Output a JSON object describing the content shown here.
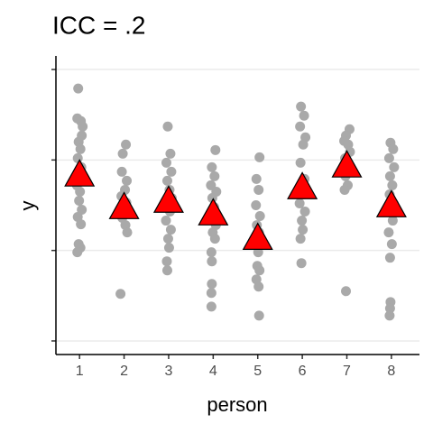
{
  "chart_data": {
    "type": "scatter",
    "title": "ICC = .2",
    "xlabel": "person",
    "ylabel": "y",
    "xlim": [
      0.47,
      8.63
    ],
    "xticks": [
      1,
      2,
      3,
      4,
      5,
      6,
      7,
      8
    ],
    "ylim": [
      -0.15,
      3.15
    ],
    "yticks": [
      0,
      1,
      2,
      3
    ],
    "grid": true,
    "series": [
      {
        "color": "#a9a9a9",
        "marker": "circle",
        "x": [
          0.97,
          0.95,
          1.03,
          1.07,
          1.05,
          0.98,
          1.02,
          0.96,
          1.04,
          1.06,
          0.94,
          1.01,
          0.99,
          1.05,
          0.96,
          1.03,
          0.98,
          1.02,
          0.95,
          2.04,
          1.97,
          1.95,
          2.06,
          2.02,
          1.94,
          2.05,
          1.98,
          1.96,
          2.03,
          2.07,
          1.92,
          2.98,
          3.04,
          2.95,
          3.06,
          2.97,
          3.02,
          3.07,
          2.96,
          3.03,
          2.94,
          3.05,
          2.99,
          3.01,
          2.96,
          2.97,
          4.05,
          3.97,
          4.03,
          3.95,
          4.07,
          3.98,
          4.02,
          3.94,
          4.06,
          3.99,
          4.04,
          3.96,
          3.97,
          3.97,
          3.96,
          3.96,
          5.04,
          4.97,
          5.02,
          4.96,
          5.05,
          4.98,
          5.03,
          4.95,
          5.01,
          4.99,
          5.04,
          4.97,
          5.02,
          5.03,
          5.97,
          6.04,
          5.95,
          6.07,
          6.02,
          5.96,
          6.05,
          5.98,
          6.03,
          5.94,
          6.06,
          5.99,
          6.01,
          5.96,
          5.98,
          7.06,
          6.98,
          6.94,
          7.03,
          7.07,
          6.96,
          7.04,
          6.97,
          7.02,
          6.95,
          6.98,
          7.98,
          8.04,
          7.95,
          8.06,
          7.97,
          8.02,
          7.96,
          8.05,
          7.99,
          8.03,
          7.94,
          8.01,
          7.97,
          7.98,
          7.97,
          7.96
        ],
        "values": [
          2.79,
          2.46,
          2.43,
          2.37,
          2.27,
          2.2,
          2.12,
          2.02,
          1.92,
          1.82,
          1.72,
          1.65,
          1.55,
          1.45,
          1.37,
          1.29,
          1.07,
          1.03,
          0.98,
          2.17,
          2.07,
          1.87,
          1.77,
          1.67,
          1.6,
          1.53,
          1.43,
          1.36,
          1.28,
          1.2,
          0.52,
          2.37,
          2.07,
          1.97,
          1.87,
          1.77,
          1.67,
          1.58,
          1.5,
          1.43,
          1.33,
          1.23,
          1.13,
          1.03,
          0.88,
          0.78,
          2.11,
          1.92,
          1.82,
          1.72,
          1.65,
          1.58,
          1.48,
          1.38,
          1.28,
          1.2,
          1.13,
          0.98,
          0.88,
          0.63,
          0.53,
          0.38,
          2.03,
          1.79,
          1.67,
          1.5,
          1.38,
          1.28,
          1.2,
          1.1,
          0.98,
          0.83,
          0.78,
          0.68,
          0.6,
          0.28,
          2.59,
          2.49,
          2.37,
          2.25,
          2.17,
          1.97,
          1.79,
          1.72,
          1.62,
          1.52,
          1.43,
          1.33,
          1.23,
          1.13,
          0.86,
          2.34,
          2.27,
          2.21,
          2.17,
          2.09,
          2.02,
          1.92,
          1.82,
          1.72,
          1.67,
          0.55,
          2.19,
          2.12,
          2.02,
          1.92,
          1.82,
          1.72,
          1.62,
          1.52,
          1.43,
          1.33,
          1.2,
          1.07,
          0.92,
          0.43,
          0.36,
          0.28
        ]
      },
      {
        "color": "#ff0000",
        "marker": "triangle",
        "x": [
          1,
          2,
          3,
          4,
          5,
          6,
          7,
          8
        ],
        "values": [
          1.84,
          1.48,
          1.55,
          1.41,
          1.14,
          1.7,
          1.94,
          1.5
        ]
      }
    ]
  }
}
